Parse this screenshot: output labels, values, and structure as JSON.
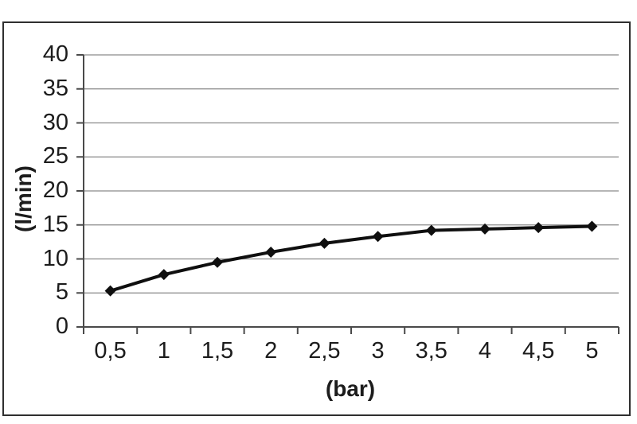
{
  "chart_data": {
    "type": "line",
    "title": "",
    "xlabel": "(bar)",
    "ylabel": "(l/min)",
    "x": [
      0.5,
      1,
      1.5,
      2,
      2.5,
      3,
      3.5,
      4,
      4.5,
      5
    ],
    "x_tick_labels": [
      "0,5",
      "1",
      "1,5",
      "2",
      "2,5",
      "3",
      "3,5",
      "4",
      "4,5",
      "5"
    ],
    "values": [
      5.3,
      7.7,
      9.5,
      11,
      12.3,
      13.3,
      14.2,
      14.4,
      14.6,
      14.8
    ],
    "y_ticks": [
      0,
      5,
      10,
      15,
      20,
      25,
      30,
      35,
      40
    ],
    "y_tick_labels": [
      "0",
      "5",
      "10",
      "15",
      "20",
      "25",
      "30",
      "35",
      "40"
    ],
    "ylim": [
      0,
      40
    ],
    "grid": "horizontal",
    "legend": "none",
    "marker": "diamond",
    "colors": {
      "line": "#0f0f0f",
      "marker": "#0f0f0f",
      "grid": "#8a8a8a",
      "axis": "#4a4a4a",
      "frame": "#2f2f2f",
      "label": "#1c1c1c",
      "background": "#ffffff"
    }
  }
}
